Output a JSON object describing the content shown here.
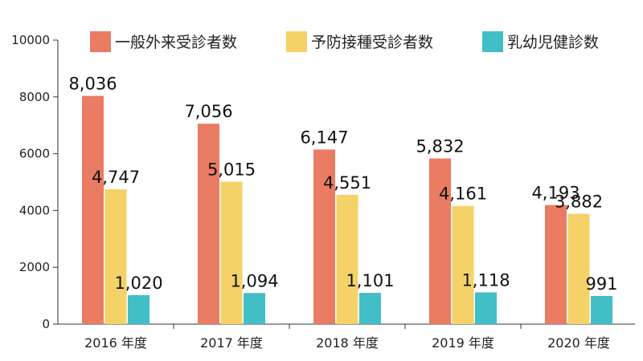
{
  "chart_data": {
    "type": "bar",
    "title": "",
    "xlabel": "",
    "ylabel": "",
    "ylim": [
      0,
      10000
    ],
    "yticks": [
      0,
      2000,
      4000,
      6000,
      8000,
      10000
    ],
    "grid": false,
    "legend_position": "top-right",
    "categories": [
      "2016 年度",
      "2017 年度",
      "2018 年度",
      "2019 年度",
      "2020 年度"
    ],
    "series": [
      {
        "name": "一般外来受診者数",
        "color": "#E97C63",
        "values": [
          8036,
          7056,
          6147,
          5832,
          4193
        ],
        "labels": [
          "8,036",
          "7,056",
          "6,147",
          "5,832",
          "4,193"
        ]
      },
      {
        "name": "予防接種受診者数",
        "color": "#F5D268",
        "values": [
          4747,
          5015,
          4551,
          4161,
          3882
        ],
        "labels": [
          "4,747",
          "5,015",
          "4,551",
          "4,161",
          "3,882"
        ]
      },
      {
        "name": "乳幼児健診数",
        "color": "#42BEC7",
        "values": [
          1020,
          1094,
          1101,
          1118,
          991
        ],
        "labels": [
          "1,020",
          "1,094",
          "1,101",
          "1,118",
          "991"
        ]
      }
    ]
  }
}
